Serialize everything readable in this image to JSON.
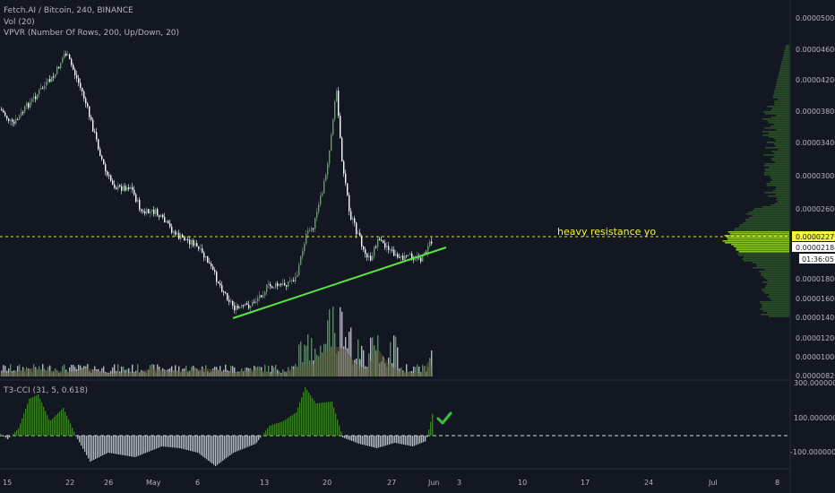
{
  "header": {
    "symbol": "Fetch.AI / Bitcoin, 240, BINANCE",
    "vol": "Vol (20)",
    "vpvr": "VPVR (Number Of Rows, 200, Up/Down, 20)"
  },
  "annotation": "heavy resistance yo",
  "price_axis": {
    "labels": [
      "0.00005000",
      "0.00004600",
      "0.00004200",
      "0.00003800",
      "0.00003400",
      "0.00003000",
      "0.00002600",
      "0.00002200",
      "0.00001800",
      "0.00001600",
      "0.00001400",
      "0.00001200",
      "0.00001000",
      "0.00000820"
    ]
  },
  "price_tags": {
    "resistance": "0.00002279",
    "last": "0.00002184",
    "countdown": "01:36:05"
  },
  "indicator": {
    "title": "T3-CCI (31, 5, 0.618)",
    "labels": [
      "300.00000000",
      "100.00000000",
      "-100.00000000"
    ]
  },
  "time_axis": {
    "labels": [
      "15",
      "22",
      "26",
      "May",
      "6",
      "13",
      "20",
      "27",
      "Jun",
      "3",
      "10",
      "17",
      "24",
      "Jul",
      "8"
    ]
  },
  "colors": {
    "background": "#131722",
    "up": "#4caf50",
    "down": "#ffffff",
    "trendline": "#55e63c",
    "resistance": "#f5f542",
    "cci_pos": "#3d7d2a",
    "cci_neg": "#b8bcc5",
    "checkmark": "#34c33c"
  },
  "chart_data": {
    "type": "candlestick",
    "series_anchor_prices": [
      {
        "x": "Apr 15",
        "price": 3.8e-05
      },
      {
        "x": "Apr 22",
        "price": 4.62e-05
      },
      {
        "x": "Apr 26",
        "price": 3.4e-05
      },
      {
        "x": "May 1",
        "price": 2.6e-05
      },
      {
        "x": "May 6",
        "price": 2.2e-05
      },
      {
        "x": "May 10",
        "price": 1.5e-05
      },
      {
        "x": "May 13",
        "price": 1.75e-05
      },
      {
        "x": "May 17",
        "price": 2.4e-05
      },
      {
        "x": "May 20",
        "price": 4.2e-05
      },
      {
        "x": "May 23",
        "price": 2.5e-05
      },
      {
        "x": "May 27",
        "price": 2.1e-05
      },
      {
        "x": "May 31",
        "price": 2.18e-05
      }
    ],
    "cci_anchor_values": [
      {
        "x": "Apr 15",
        "value": 20
      },
      {
        "x": "Apr 20",
        "value": 280
      },
      {
        "x": "Apr 24",
        "value": -220
      },
      {
        "x": "May 6",
        "value": -200
      },
      {
        "x": "May 17",
        "value": 150
      },
      {
        "x": "May 20",
        "value": 300
      },
      {
        "x": "May 24",
        "value": -150
      },
      {
        "x": "May 31",
        "value": 120
      }
    ],
    "resistance_level": 2.279e-05,
    "last_price": 2.184e-05,
    "ylim": [
      8.2e-06,
      5.2e-06
    ]
  }
}
